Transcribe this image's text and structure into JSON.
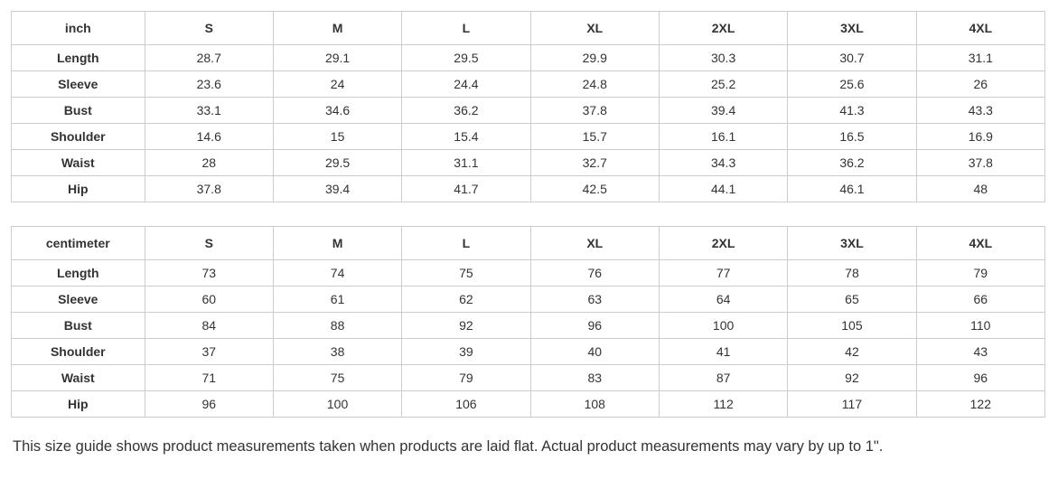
{
  "tables": [
    {
      "unit_label": "inch",
      "sizes": [
        "S",
        "M",
        "L",
        "XL",
        "2XL",
        "3XL",
        "4XL"
      ],
      "rows": [
        {
          "label": "Length",
          "values": [
            "28.7",
            "29.1",
            "29.5",
            "29.9",
            "30.3",
            "30.7",
            "31.1"
          ]
        },
        {
          "label": "Sleeve",
          "values": [
            "23.6",
            "24",
            "24.4",
            "24.8",
            "25.2",
            "25.6",
            "26"
          ]
        },
        {
          "label": "Bust",
          "values": [
            "33.1",
            "34.6",
            "36.2",
            "37.8",
            "39.4",
            "41.3",
            "43.3"
          ]
        },
        {
          "label": "Shoulder",
          "values": [
            "14.6",
            "15",
            "15.4",
            "15.7",
            "16.1",
            "16.5",
            "16.9"
          ]
        },
        {
          "label": "Waist",
          "values": [
            "28",
            "29.5",
            "31.1",
            "32.7",
            "34.3",
            "36.2",
            "37.8"
          ]
        },
        {
          "label": "Hip",
          "values": [
            "37.8",
            "39.4",
            "41.7",
            "42.5",
            "44.1",
            "46.1",
            "48"
          ]
        }
      ]
    },
    {
      "unit_label": "centimeter",
      "sizes": [
        "S",
        "M",
        "L",
        "XL",
        "2XL",
        "3XL",
        "4XL"
      ],
      "rows": [
        {
          "label": "Length",
          "values": [
            "73",
            "74",
            "75",
            "76",
            "77",
            "78",
            "79"
          ]
        },
        {
          "label": "Sleeve",
          "values": [
            "60",
            "61",
            "62",
            "63",
            "64",
            "65",
            "66"
          ]
        },
        {
          "label": "Bust",
          "values": [
            "84",
            "88",
            "92",
            "96",
            "100",
            "105",
            "110"
          ]
        },
        {
          "label": "Shoulder",
          "values": [
            "37",
            "38",
            "39",
            "40",
            "41",
            "42",
            "43"
          ]
        },
        {
          "label": "Waist",
          "values": [
            "71",
            "75",
            "79",
            "83",
            "87",
            "92",
            "96"
          ]
        },
        {
          "label": "Hip",
          "values": [
            "96",
            "100",
            "106",
            "108",
            "112",
            "117",
            "122"
          ]
        }
      ]
    }
  ],
  "footer": {
    "note": "This size guide shows product measurements taken when products are laid flat. Actual product measurements may vary by up to 1\"."
  },
  "colors": {
    "border": "#cccccc",
    "text": "#333333",
    "background": "#ffffff"
  }
}
